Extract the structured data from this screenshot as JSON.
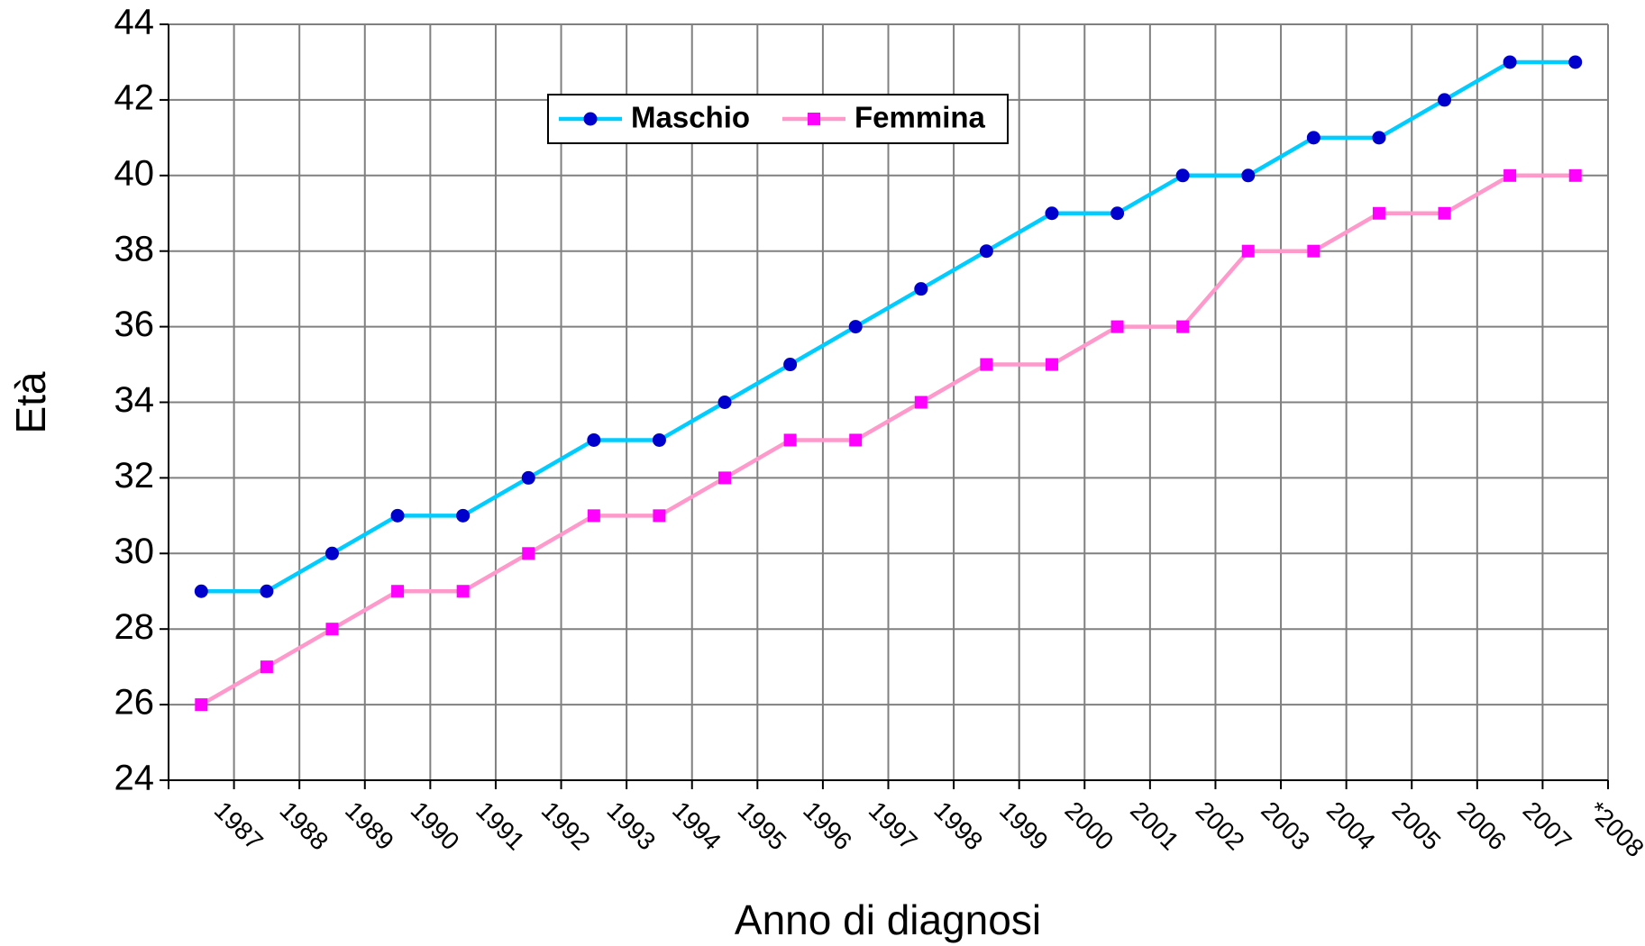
{
  "chart_data": {
    "type": "line",
    "x_label": "Anno di diagnosi",
    "y_label": "Età",
    "categories": [
      "1987",
      "1988",
      "1989",
      "1990",
      "1991",
      "1992",
      "1993",
      "1994",
      "1995",
      "1996",
      "1997",
      "1998",
      "1999",
      "2000",
      "2001",
      "2002",
      "2003",
      "2004",
      "2005",
      "2006",
      "2007",
      "*2008"
    ],
    "series": [
      {
        "name": "Maschio",
        "color": "#00ccff",
        "marker_color": "#0000cc",
        "marker": "circle",
        "values": [
          29,
          29,
          30,
          31,
          31,
          32,
          33,
          33,
          34,
          35,
          36,
          37,
          38,
          39,
          39,
          40,
          40,
          41,
          41,
          42,
          43,
          43
        ]
      },
      {
        "name": "Femmina",
        "color": "#ff99cc",
        "marker_color": "#ff00ff",
        "marker": "square",
        "values": [
          26,
          27,
          28,
          29,
          29,
          30,
          31,
          31,
          32,
          33,
          33,
          34,
          35,
          35,
          36,
          36,
          38,
          38,
          39,
          39,
          40,
          40
        ]
      }
    ],
    "ylim": [
      24,
      44
    ],
    "yticks": [
      24,
      26,
      28,
      30,
      32,
      34,
      36,
      38,
      40,
      42,
      44
    ],
    "grid": true,
    "legend": "top"
  }
}
